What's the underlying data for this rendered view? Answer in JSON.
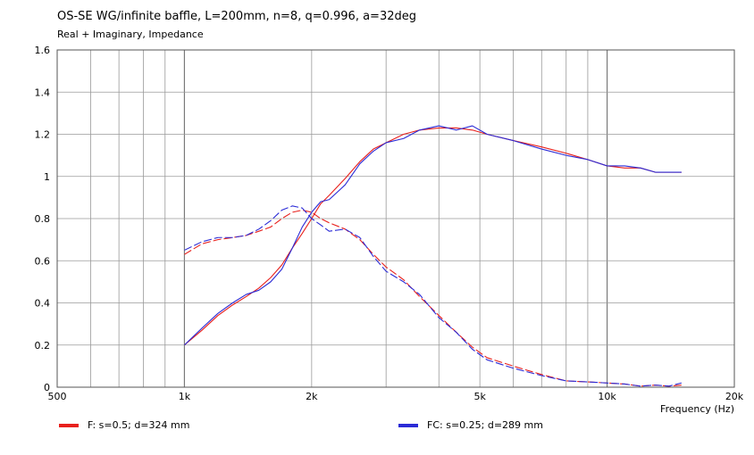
{
  "chart_data": {
    "type": "line",
    "title": "OS-SE WG/infinite baffle, L=200mm, n=8, q=0.996, a=32deg",
    "subtitle": "Real + Imaginary, Impedance",
    "xlabel": "Frequency  (Hz)",
    "ylabel": "",
    "xscale": "log",
    "xlim": [
      500,
      20000
    ],
    "ylim": [
      0,
      1.6
    ],
    "x_ticks": [
      {
        "value": 500,
        "label": "500"
      },
      {
        "value": 1000,
        "label": "1k"
      },
      {
        "value": 2000,
        "label": "2k"
      },
      {
        "value": 5000,
        "label": "5k"
      },
      {
        "value": 10000,
        "label": "10k"
      },
      {
        "value": 20000,
        "label": "20k"
      }
    ],
    "y_ticks": [
      {
        "value": 0,
        "label": "0"
      },
      {
        "value": 0.2,
        "label": "0.2"
      },
      {
        "value": 0.4,
        "label": "0.4"
      },
      {
        "value": 0.6,
        "label": "0.6"
      },
      {
        "value": 0.8,
        "label": "0.8"
      },
      {
        "value": 1.0,
        "label": "1"
      },
      {
        "value": 1.2,
        "label": "1.2"
      },
      {
        "value": 1.4,
        "label": "1.4"
      },
      {
        "value": 1.6,
        "label": "1.6"
      }
    ],
    "grid": true,
    "legend_position": "bottom",
    "series": [
      {
        "name": "F: s=0.5; d=324 mm",
        "color": "#e8201c",
        "curves": [
          {
            "part": "real",
            "dash": false,
            "points": [
              [
                1000,
                0.2
              ],
              [
                1100,
                0.27
              ],
              [
                1200,
                0.34
              ],
              [
                1300,
                0.39
              ],
              [
                1400,
                0.43
              ],
              [
                1500,
                0.47
              ],
              [
                1600,
                0.52
              ],
              [
                1700,
                0.58
              ],
              [
                1800,
                0.66
              ],
              [
                1900,
                0.73
              ],
              [
                2000,
                0.8
              ],
              [
                2100,
                0.87
              ],
              [
                2200,
                0.91
              ],
              [
                2400,
                0.99
              ],
              [
                2600,
                1.07
              ],
              [
                2800,
                1.13
              ],
              [
                3000,
                1.16
              ],
              [
                3300,
                1.2
              ],
              [
                3600,
                1.22
              ],
              [
                4000,
                1.23
              ],
              [
                4400,
                1.23
              ],
              [
                4800,
                1.22
              ],
              [
                5200,
                1.2
              ],
              [
                6000,
                1.17
              ],
              [
                7000,
                1.14
              ],
              [
                8000,
                1.11
              ],
              [
                9000,
                1.08
              ],
              [
                10000,
                1.05
              ],
              [
                11000,
                1.04
              ],
              [
                12000,
                1.04
              ],
              [
                13000,
                1.02
              ],
              [
                14000,
                1.02
              ],
              [
                15000,
                1.02
              ]
            ]
          },
          {
            "part": "imaginary",
            "dash": true,
            "points": [
              [
                1000,
                0.63
              ],
              [
                1100,
                0.68
              ],
              [
                1200,
                0.7
              ],
              [
                1300,
                0.71
              ],
              [
                1400,
                0.72
              ],
              [
                1500,
                0.74
              ],
              [
                1600,
                0.76
              ],
              [
                1700,
                0.8
              ],
              [
                1800,
                0.83
              ],
              [
                1900,
                0.84
              ],
              [
                2000,
                0.83
              ],
              [
                2100,
                0.8
              ],
              [
                2200,
                0.78
              ],
              [
                2400,
                0.75
              ],
              [
                2600,
                0.7
              ],
              [
                2800,
                0.63
              ],
              [
                3000,
                0.57
              ],
              [
                3300,
                0.51
              ],
              [
                3600,
                0.43
              ],
              [
                4000,
                0.34
              ],
              [
                4400,
                0.26
              ],
              [
                4800,
                0.19
              ],
              [
                5200,
                0.14
              ],
              [
                6000,
                0.1
              ],
              [
                7000,
                0.06
              ],
              [
                8000,
                0.03
              ],
              [
                9000,
                0.025
              ],
              [
                10000,
                0.02
              ],
              [
                11000,
                0.015
              ],
              [
                12000,
                0.005
              ],
              [
                13000,
                0.01
              ],
              [
                14000,
                0.005
              ],
              [
                15000,
                0.01
              ]
            ]
          }
        ]
      },
      {
        "name": "FC: s=0.25; d=289 mm",
        "color": "#2b2bd6",
        "curves": [
          {
            "part": "real",
            "dash": false,
            "points": [
              [
                1000,
                0.2
              ],
              [
                1100,
                0.28
              ],
              [
                1200,
                0.35
              ],
              [
                1300,
                0.4
              ],
              [
                1400,
                0.44
              ],
              [
                1500,
                0.46
              ],
              [
                1600,
                0.5
              ],
              [
                1700,
                0.56
              ],
              [
                1800,
                0.66
              ],
              [
                1900,
                0.76
              ],
              [
                2000,
                0.83
              ],
              [
                2100,
                0.88
              ],
              [
                2200,
                0.89
              ],
              [
                2400,
                0.96
              ],
              [
                2600,
                1.06
              ],
              [
                2800,
                1.12
              ],
              [
                3000,
                1.16
              ],
              [
                3300,
                1.18
              ],
              [
                3600,
                1.22
              ],
              [
                4000,
                1.24
              ],
              [
                4400,
                1.22
              ],
              [
                4800,
                1.24
              ],
              [
                5200,
                1.2
              ],
              [
                6000,
                1.17
              ],
              [
                7000,
                1.13
              ],
              [
                8000,
                1.1
              ],
              [
                9000,
                1.08
              ],
              [
                10000,
                1.05
              ],
              [
                11000,
                1.05
              ],
              [
                12000,
                1.04
              ],
              [
                13000,
                1.02
              ],
              [
                14000,
                1.02
              ],
              [
                15000,
                1.02
              ]
            ]
          },
          {
            "part": "imaginary",
            "dash": true,
            "points": [
              [
                1000,
                0.65
              ],
              [
                1100,
                0.69
              ],
              [
                1200,
                0.71
              ],
              [
                1300,
                0.71
              ],
              [
                1400,
                0.72
              ],
              [
                1500,
                0.75
              ],
              [
                1600,
                0.79
              ],
              [
                1700,
                0.84
              ],
              [
                1800,
                0.86
              ],
              [
                1900,
                0.85
              ],
              [
                2000,
                0.8
              ],
              [
                2100,
                0.77
              ],
              [
                2200,
                0.74
              ],
              [
                2400,
                0.75
              ],
              [
                2600,
                0.71
              ],
              [
                2800,
                0.62
              ],
              [
                3000,
                0.55
              ],
              [
                3300,
                0.5
              ],
              [
                3600,
                0.44
              ],
              [
                4000,
                0.33
              ],
              [
                4400,
                0.26
              ],
              [
                4800,
                0.18
              ],
              [
                5200,
                0.13
              ],
              [
                6000,
                0.09
              ],
              [
                7000,
                0.055
              ],
              [
                8000,
                0.03
              ],
              [
                9000,
                0.025
              ],
              [
                10000,
                0.02
              ],
              [
                11000,
                0.015
              ],
              [
                12000,
                0.005
              ],
              [
                13000,
                0.01
              ],
              [
                14000,
                0.005
              ],
              [
                15000,
                0.02
              ]
            ]
          }
        ]
      }
    ]
  }
}
